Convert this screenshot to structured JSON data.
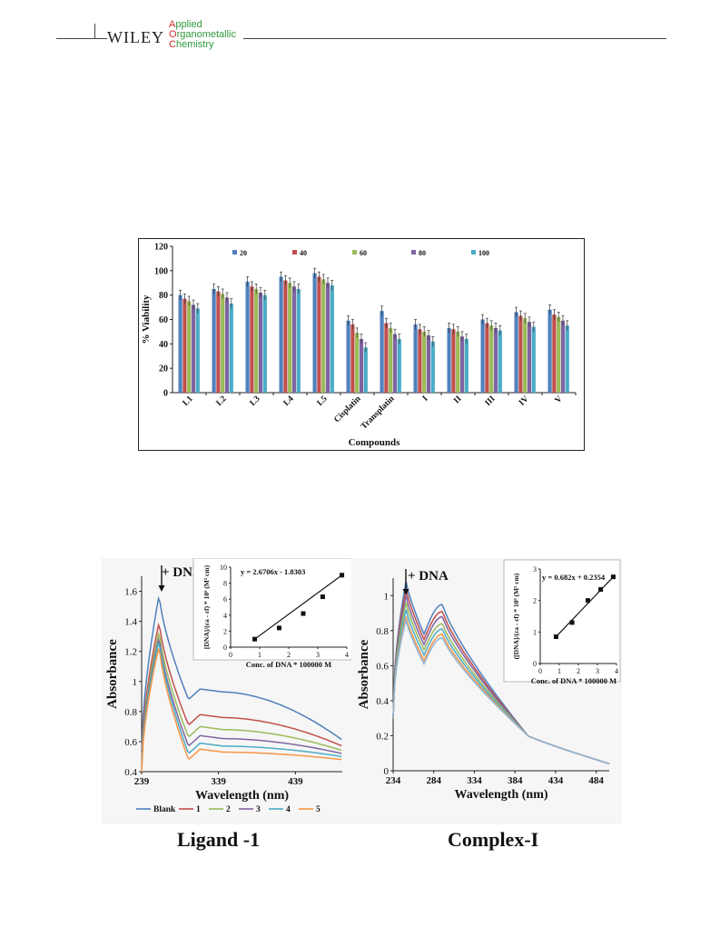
{
  "header": {
    "publisher": "WILEY",
    "journal_lines": [
      {
        "cap": "A",
        "rest": "pplied"
      },
      {
        "cap": "O",
        "rest": "rganometallic"
      },
      {
        "cap": "C",
        "rest": "hemistry"
      }
    ]
  },
  "captions": {
    "left": "Ligand -1",
    "right": "Complex-I"
  },
  "colors": {
    "s20": "#4f81bd",
    "s40": "#c0504d",
    "s60": "#9bbb59",
    "s80": "#8064a2",
    "s100": "#4bacc6"
  },
  "chart_data": [
    {
      "type": "bar",
      "xlabel": "Compounds",
      "ylabel": "% Viability",
      "ylim": [
        0,
        120
      ],
      "yticks": [
        0,
        20,
        40,
        60,
        80,
        100,
        120
      ],
      "categories": [
        "L1",
        "L2",
        "L3",
        "L4",
        "L5",
        "Cisplatin",
        "Transplatin",
        "I",
        "II",
        "III",
        "IV",
        "V"
      ],
      "series": [
        {
          "name": "20",
          "values": [
            80,
            85,
            91,
            95,
            98,
            59,
            67,
            56,
            53,
            60,
            66,
            68
          ]
        },
        {
          "name": "40",
          "values": [
            77,
            83,
            87,
            92,
            95,
            56,
            57,
            52,
            52,
            57,
            63,
            64
          ]
        },
        {
          "name": "60",
          "values": [
            75,
            81,
            85,
            90,
            93,
            49,
            53,
            50,
            50,
            55,
            61,
            62
          ]
        },
        {
          "name": "80",
          "values": [
            72,
            78,
            82,
            87,
            90,
            44,
            48,
            47,
            46,
            53,
            58,
            59
          ]
        },
        {
          "name": "100",
          "values": [
            69,
            73,
            80,
            85,
            88,
            37,
            44,
            42,
            44,
            51,
            54,
            55
          ]
        }
      ],
      "legend": "top"
    },
    {
      "type": "line",
      "ylabel": "Absorbance",
      "xlabel": "Wavelength (nm)",
      "xlim": [
        239,
        500
      ],
      "ylim": [
        0.4,
        1.7
      ],
      "xticks": [
        239,
        339,
        439
      ],
      "yticks": [
        0.4,
        0.6,
        0.8,
        1,
        1.2,
        1.4,
        1.6
      ],
      "annotation": "+ DNA",
      "legend": "bottom",
      "series": [
        {
          "name": "Blank",
          "color": "#4f81bd",
          "peak": 1.58,
          "mid": 0.95,
          "end": 0.61
        },
        {
          "name": "1",
          "color": "#c0504d",
          "peak": 1.4,
          "mid": 0.78,
          "end": 0.57
        },
        {
          "name": "2",
          "color": "#9bbb59",
          "peak": 1.34,
          "mid": 0.7,
          "end": 0.54
        },
        {
          "name": "3",
          "color": "#8064a2",
          "peak": 1.3,
          "mid": 0.64,
          "end": 0.52
        },
        {
          "name": "4",
          "color": "#4bacc6",
          "peak": 1.28,
          "mid": 0.59,
          "end": 0.5
        },
        {
          "name": "5",
          "color": "#f79646",
          "peak": 1.24,
          "mid": 0.55,
          "end": 0.48
        }
      ],
      "inset": {
        "type": "scatter",
        "equation": "y = 2.6706x - 1.8303",
        "xlabel": "Conc. of DNA * 100000 M",
        "ylabel": "[DNA]/(εa - εf) * 10⁹ (M² cm)",
        "xlim": [
          0,
          4
        ],
        "ylim": [
          0,
          10
        ],
        "xticks": [
          0,
          1,
          2,
          3,
          4
        ],
        "yticks": [
          0,
          2,
          4,
          6,
          8,
          10
        ],
        "x": [
          0.83,
          1.67,
          2.5,
          3.17,
          3.83
        ],
        "y": [
          1.0,
          2.4,
          4.2,
          6.3,
          9.0
        ]
      }
    },
    {
      "type": "line",
      "ylabel": "Absorbance",
      "xlabel": "Wavelength (nm)",
      "xlim": [
        234,
        500
      ],
      "ylim": [
        0,
        1.1
      ],
      "xticks": [
        234,
        284,
        334,
        384,
        434,
        484
      ],
      "yticks": [
        0,
        0.2,
        0.4,
        0.6,
        0.8,
        1
      ],
      "annotation": "+ DNA",
      "series": [
        {
          "color": "#4f81bd",
          "peak": 1.08,
          "dip": 0.78,
          "mid": 0.95
        },
        {
          "color": "#c0504d",
          "peak": 1.04,
          "dip": 0.75,
          "mid": 0.91
        },
        {
          "color": "#8064a2",
          "peak": 1.0,
          "dip": 0.72,
          "mid": 0.88
        },
        {
          "color": "#9bbb59",
          "peak": 0.96,
          "dip": 0.69,
          "mid": 0.84
        },
        {
          "color": "#4bacc6",
          "peak": 0.92,
          "dip": 0.66,
          "mid": 0.81
        },
        {
          "color": "#f79646",
          "peak": 0.88,
          "dip": 0.63,
          "mid": 0.78
        },
        {
          "color": "#8fb4d8",
          "peak": 0.86,
          "dip": 0.61,
          "mid": 0.76
        }
      ],
      "inset": {
        "type": "scatter",
        "equation": "y = 0.682x + 0.2354",
        "xlabel": "Conc. of DNA * 100000 M",
        "ylabel": "([DNA]/(εa - εf) * 10⁹ (M² cm)",
        "xlim": [
          0,
          4
        ],
        "ylim": [
          0,
          3
        ],
        "xticks": [
          0,
          1,
          2,
          3,
          4
        ],
        "yticks": [
          0,
          1,
          2,
          3
        ],
        "x": [
          0.83,
          1.67,
          2.5,
          3.17,
          3.83
        ],
        "y": [
          0.85,
          1.3,
          2.0,
          2.35,
          2.75
        ]
      }
    }
  ]
}
